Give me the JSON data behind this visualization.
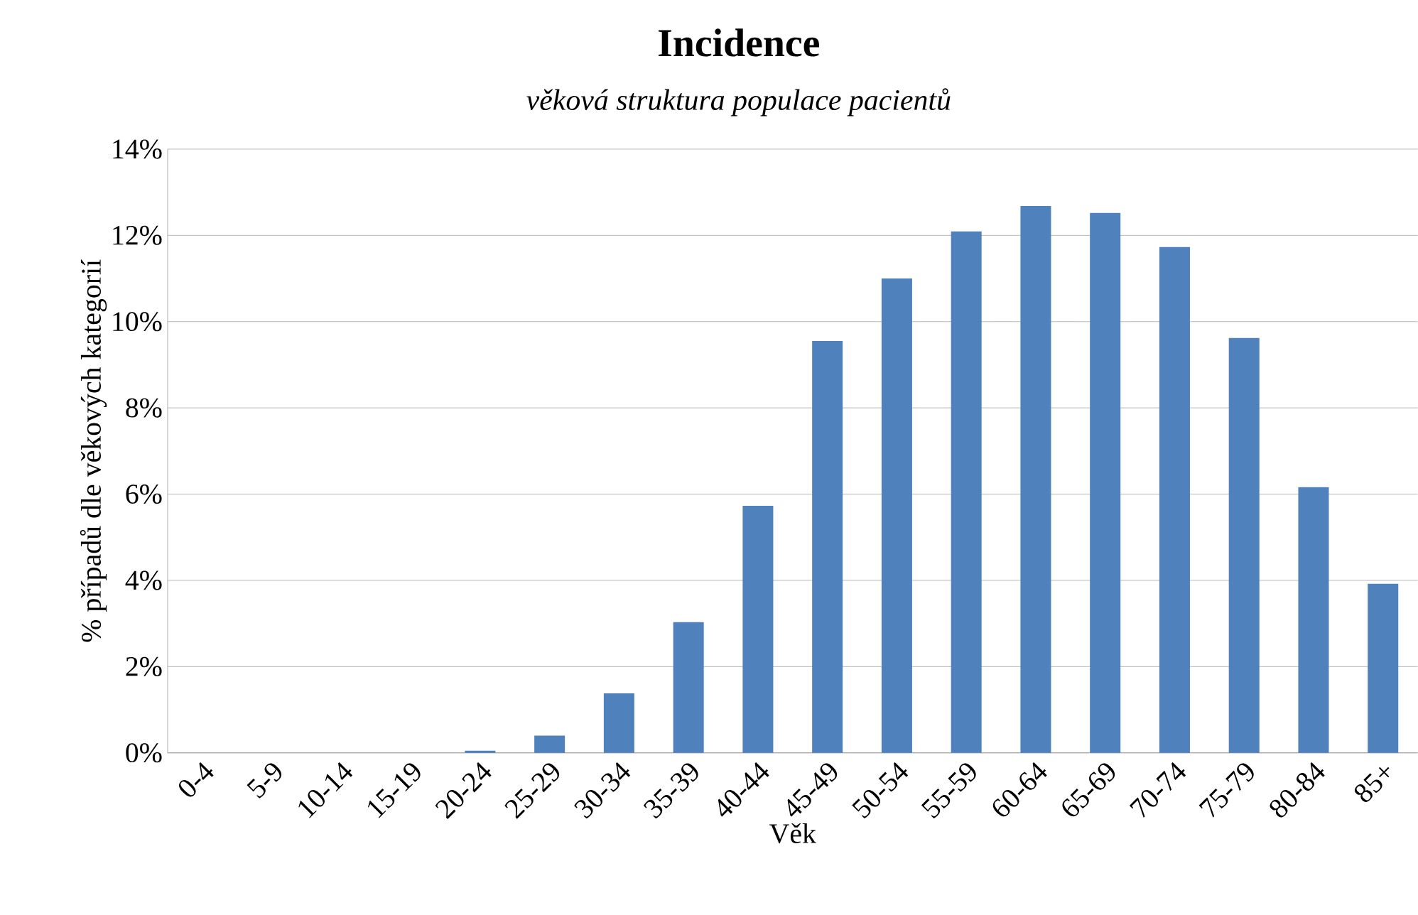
{
  "chart_data": {
    "type": "bar",
    "title": "Incidence",
    "subtitle": "věková struktura populace pacientů",
    "xlabel": "Věk",
    "ylabel": "% případů dle věkových kategorií",
    "categories": [
      "0-4",
      "5-9",
      "10-14",
      "15-19",
      "20-24",
      "25-29",
      "30-34",
      "35-39",
      "40-44",
      "45-49",
      "50-54",
      "55-59",
      "60-64",
      "65-69",
      "70-74",
      "75-79",
      "80-84",
      "85+"
    ],
    "values": [
      0,
      0,
      0,
      0,
      0.05,
      0.4,
      1.38,
      3.03,
      5.73,
      9.55,
      11.0,
      12.09,
      12.68,
      12.52,
      11.73,
      9.62,
      6.16,
      3.92
    ],
    "color": "#4f81bd",
    "ylim": [
      0,
      14
    ],
    "yticks": [
      {
        "value": 0,
        "label": "0%"
      },
      {
        "value": 2,
        "label": "2%"
      },
      {
        "value": 4,
        "label": "4%"
      },
      {
        "value": 6,
        "label": "6%"
      },
      {
        "value": 8,
        "label": "8%"
      },
      {
        "value": 10,
        "label": "10%"
      },
      {
        "value": 12,
        "label": "12%"
      },
      {
        "value": 14,
        "label": "14%"
      }
    ],
    "grid": "y"
  }
}
